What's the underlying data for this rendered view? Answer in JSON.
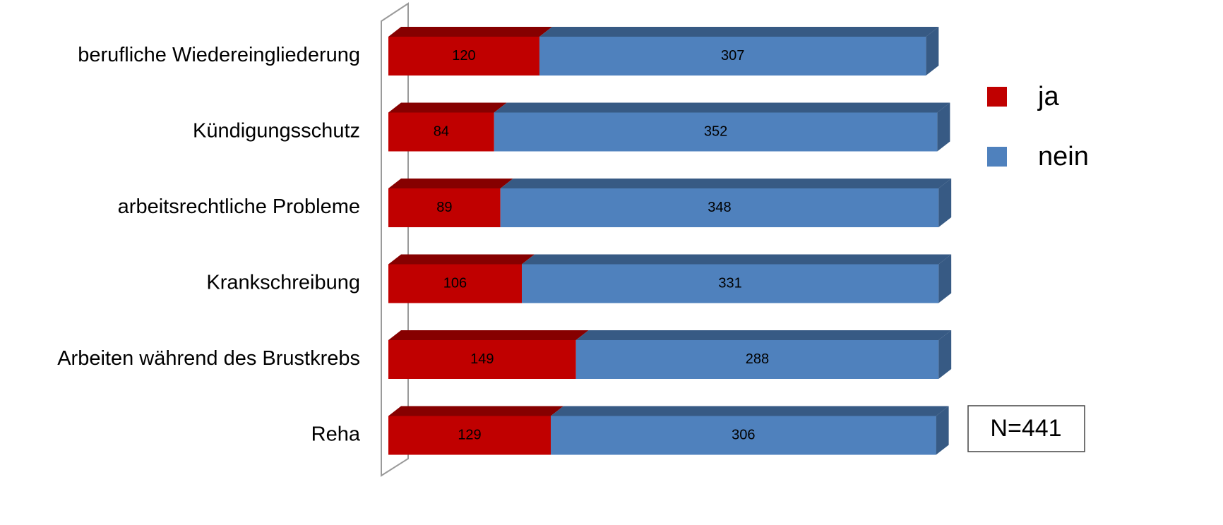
{
  "chart_data": {
    "type": "stacked-bar-horizontal",
    "categories": [
      "berufliche Wiedereingliederung",
      "Kündigungsschutz",
      "arbeitsrechtliche Probleme",
      "Krankschreibung",
      "Arbeiten während des Brustkrebs",
      "Reha"
    ],
    "series": [
      {
        "name": "ja",
        "color": "#c00000",
        "values": [
          120,
          84,
          89,
          106,
          149,
          129
        ]
      },
      {
        "name": "nein",
        "color": "#4f81bd",
        "values": [
          307,
          352,
          348,
          331,
          288,
          306
        ]
      }
    ],
    "annotation": "N=441",
    "legend": "right"
  }
}
